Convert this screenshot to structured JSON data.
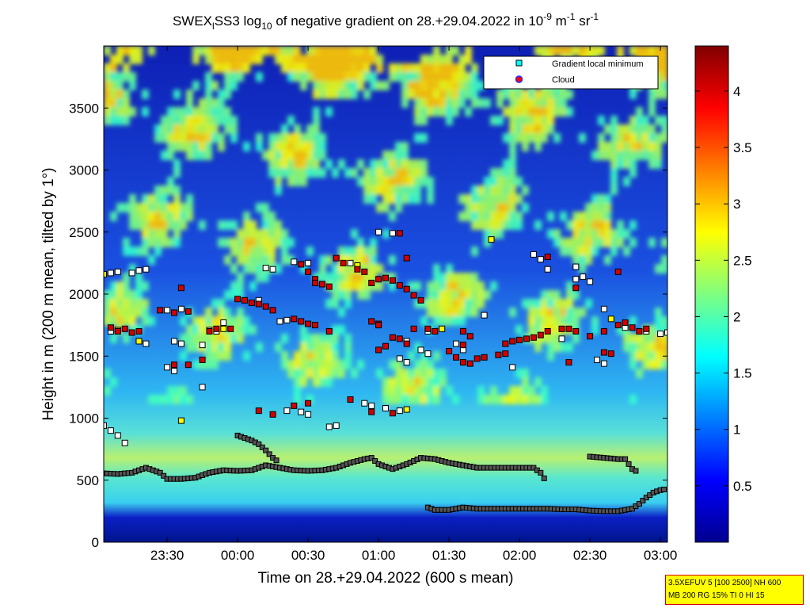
{
  "chart_data": {
    "type": "heatmap",
    "title": {
      "t1": "SWEX",
      "sub1": "l",
      "t2": "SS3 log",
      "sub2": "10",
      "t3": " of negative gradient on 28.+29.04.2022 in 10",
      "sup1": "-9",
      "t4": " m",
      "sup2": "-1",
      "t5": " sr",
      "sup3": "-1"
    },
    "xlabel": "Time on 28.+29.04.2022 (600 s mean)",
    "ylabel": "Height in m (200 m mean, tilted by 1°)",
    "x_ticks": [
      "23:30",
      "00:00",
      "00:30",
      "01:00",
      "01:30",
      "02:00",
      "02:30",
      "03:00"
    ],
    "x_tick_hours": [
      23.5,
      24.0,
      24.5,
      25.0,
      25.5,
      26.0,
      26.5,
      27.0
    ],
    "xlim_hours": [
      23.05,
      27.05
    ],
    "y_ticks": [
      "0",
      "500",
      "1000",
      "1500",
      "2000",
      "2500",
      "3000",
      "3500"
    ],
    "y_tick_values": [
      0,
      500,
      1000,
      1500,
      2000,
      2500,
      3000,
      3500
    ],
    "ylim": [
      0,
      4000
    ],
    "colorbar": {
      "ticks": [
        "0.5",
        "1",
        "1.5",
        "2",
        "2.5",
        "3",
        "3.5",
        "4"
      ],
      "tick_values": [
        0.5,
        1,
        1.5,
        2,
        2.5,
        3,
        3.5,
        4
      ],
      "range": [
        0,
        4.4
      ],
      "colormap": "jet"
    },
    "legend": {
      "placement": "top-right",
      "entries": [
        {
          "label": "Gradient local minimum",
          "marker": "square",
          "color": "#00ffff"
        },
        {
          "label": "Cloud",
          "marker": "circle",
          "color": "#ff0000"
        }
      ]
    },
    "series": [
      {
        "name": "Gradient local minimum",
        "style": "layer",
        "points": [
          [
            23.05,
            555
          ],
          [
            23.15,
            550
          ],
          [
            23.25,
            560
          ],
          [
            23.35,
            600
          ],
          [
            23.45,
            560
          ],
          [
            23.5,
            510
          ],
          [
            23.6,
            510
          ],
          [
            23.7,
            520
          ],
          [
            23.8,
            560
          ],
          [
            23.9,
            580
          ],
          [
            24.0,
            575
          ],
          [
            24.1,
            580
          ],
          [
            24.15,
            600
          ],
          [
            24.2,
            620
          ],
          [
            24.3,
            600
          ],
          [
            24.4,
            580
          ],
          [
            24.5,
            575
          ],
          [
            24.6,
            580
          ],
          [
            24.7,
            600
          ],
          [
            24.8,
            640
          ],
          [
            24.9,
            670
          ],
          [
            24.95,
            680
          ],
          [
            25.0,
            630
          ],
          [
            25.1,
            590
          ],
          [
            25.2,
            630
          ],
          [
            25.3,
            680
          ],
          [
            25.4,
            670
          ],
          [
            25.5,
            640
          ],
          [
            25.6,
            620
          ],
          [
            25.7,
            600
          ],
          [
            25.8,
            600
          ],
          [
            25.9,
            600
          ],
          [
            26.0,
            600
          ],
          [
            26.1,
            600
          ],
          [
            26.15,
            560
          ],
          [
            26.2,
            470
          ]
        ]
      },
      {
        "name": "Gradient local minimum",
        "style": "layer",
        "points": [
          [
            25.35,
            280
          ],
          [
            25.4,
            260
          ],
          [
            25.5,
            260
          ],
          [
            25.6,
            280
          ],
          [
            25.7,
            270
          ],
          [
            25.8,
            270
          ],
          [
            25.9,
            270
          ],
          [
            26.0,
            270
          ],
          [
            26.1,
            270
          ],
          [
            26.2,
            270
          ],
          [
            26.3,
            265
          ],
          [
            26.4,
            265
          ],
          [
            26.5,
            255
          ],
          [
            26.6,
            250
          ],
          [
            26.7,
            250
          ],
          [
            26.8,
            270
          ],
          [
            26.85,
            310
          ],
          [
            26.9,
            360
          ],
          [
            26.95,
            400
          ],
          [
            27.0,
            420
          ],
          [
            27.05,
            430
          ]
        ]
      },
      {
        "name": "Gradient local minimum",
        "style": "layer",
        "points": [
          [
            24.0,
            860
          ],
          [
            24.05,
            840
          ],
          [
            24.1,
            820
          ],
          [
            24.15,
            790
          ],
          [
            24.2,
            740
          ],
          [
            24.25,
            680
          ],
          [
            24.3,
            640
          ]
        ]
      },
      {
        "name": "Gradient local minimum",
        "style": "layer",
        "points": [
          [
            26.5,
            690
          ],
          [
            26.6,
            680
          ],
          [
            26.7,
            670
          ],
          [
            26.75,
            670
          ],
          [
            26.8,
            590
          ],
          [
            26.85,
            560
          ]
        ]
      },
      {
        "name": "Gradient local minimum",
        "style": "scatter",
        "points": [
          [
            23.05,
            2160
          ],
          [
            23.1,
            2170
          ],
          [
            23.15,
            2180
          ],
          [
            23.25,
            2170
          ],
          [
            23.3,
            2190
          ],
          [
            23.35,
            2200
          ],
          [
            23.5,
            1870
          ],
          [
            23.55,
            1850
          ],
          [
            23.6,
            1880
          ],
          [
            23.55,
            1620
          ],
          [
            23.6,
            1600
          ],
          [
            23.75,
            1590
          ],
          [
            23.8,
            1710
          ],
          [
            23.85,
            1700
          ],
          [
            23.9,
            1720
          ],
          [
            23.5,
            1410
          ],
          [
            23.55,
            1380
          ],
          [
            23.05,
            940
          ],
          [
            23.1,
            900
          ],
          [
            23.15,
            860
          ],
          [
            23.2,
            800
          ],
          [
            23.6,
            980
          ],
          [
            23.75,
            1250
          ],
          [
            24.2,
            2210
          ],
          [
            24.25,
            2200
          ],
          [
            24.4,
            2260
          ],
          [
            24.5,
            2250
          ],
          [
            24.8,
            2250
          ],
          [
            24.85,
            2230
          ],
          [
            25.0,
            2500
          ],
          [
            25.1,
            2490
          ],
          [
            24.9,
            1120
          ],
          [
            24.95,
            1100
          ],
          [
            25.05,
            1080
          ],
          [
            25.15,
            1060
          ],
          [
            25.2,
            1070
          ],
          [
            24.65,
            930
          ],
          [
            24.7,
            940
          ],
          [
            24.35,
            1060
          ],
          [
            24.45,
            1050
          ],
          [
            24.5,
            1030
          ],
          [
            23.1,
            1700
          ],
          [
            23.15,
            1710
          ],
          [
            25.2,
            1620
          ],
          [
            25.3,
            1550
          ],
          [
            25.35,
            1520
          ],
          [
            25.55,
            1600
          ],
          [
            25.6,
            1550
          ],
          [
            25.75,
            1830
          ],
          [
            25.8,
            2440
          ],
          [
            26.1,
            2320
          ],
          [
            26.15,
            2280
          ],
          [
            26.2,
            2200
          ],
          [
            26.4,
            2120
          ],
          [
            26.5,
            2100
          ],
          [
            26.6,
            1880
          ],
          [
            26.65,
            1800
          ],
          [
            26.9,
            1700
          ],
          [
            27.0,
            1680
          ],
          [
            27.05,
            1690
          ],
          [
            26.55,
            1470
          ],
          [
            26.6,
            1440
          ],
          [
            25.35,
            1700
          ],
          [
            25.45,
            1720
          ],
          [
            24.3,
            1780
          ],
          [
            24.35,
            1790
          ],
          [
            24.15,
            1950
          ],
          [
            23.9,
            1770
          ],
          [
            26.3,
            1640
          ],
          [
            26.75,
            1730
          ],
          [
            23.3,
            1620
          ],
          [
            23.35,
            1600
          ],
          [
            25.95,
            1410
          ],
          [
            26.4,
            2220
          ],
          [
            26.45,
            2140
          ],
          [
            25.15,
            1480
          ],
          [
            25.2,
            1450
          ]
        ]
      },
      {
        "name": "Cloud",
        "style": "scatter",
        "points": [
          [
            23.1,
            1730
          ],
          [
            23.15,
            1700
          ],
          [
            23.2,
            1720
          ],
          [
            23.25,
            1690
          ],
          [
            23.3,
            1700
          ],
          [
            23.45,
            1870
          ],
          [
            23.55,
            1850
          ],
          [
            23.65,
            1860
          ],
          [
            23.55,
            1430
          ],
          [
            23.65,
            1430
          ],
          [
            23.75,
            1470
          ],
          [
            23.6,
            2050
          ],
          [
            23.8,
            1700
          ],
          [
            24.0,
            1960
          ],
          [
            24.05,
            1950
          ],
          [
            24.1,
            1930
          ],
          [
            24.15,
            1920
          ],
          [
            24.2,
            1900
          ],
          [
            24.25,
            1870
          ],
          [
            24.4,
            1800
          ],
          [
            24.45,
            1780
          ],
          [
            24.5,
            1760
          ],
          [
            24.55,
            1750
          ],
          [
            24.45,
            2240
          ],
          [
            24.5,
            2180
          ],
          [
            24.55,
            2120
          ],
          [
            24.6,
            2080
          ],
          [
            24.65,
            2060
          ],
          [
            24.7,
            2290
          ],
          [
            24.75,
            2250
          ],
          [
            24.85,
            2200
          ],
          [
            24.9,
            2180
          ],
          [
            24.95,
            2090
          ],
          [
            25.0,
            2120
          ],
          [
            25.05,
            2130
          ],
          [
            25.1,
            2110
          ],
          [
            25.15,
            2070
          ],
          [
            25.2,
            2040
          ],
          [
            25.25,
            1990
          ],
          [
            25.3,
            1950
          ],
          [
            25.0,
            1550
          ],
          [
            25.05,
            1580
          ],
          [
            25.1,
            1650
          ],
          [
            25.15,
            1640
          ],
          [
            25.2,
            1600
          ],
          [
            24.95,
            1780
          ],
          [
            25.0,
            1760
          ],
          [
            25.4,
            1700
          ],
          [
            25.5,
            1540
          ],
          [
            25.55,
            1490
          ],
          [
            25.6,
            1450
          ],
          [
            25.65,
            1440
          ],
          [
            25.7,
            1480
          ],
          [
            25.75,
            1490
          ],
          [
            25.85,
            1510
          ],
          [
            25.9,
            1520
          ],
          [
            25.95,
            1620
          ],
          [
            26.0,
            1630
          ],
          [
            26.05,
            1640
          ],
          [
            26.1,
            1650
          ],
          [
            26.15,
            1670
          ],
          [
            26.2,
            1700
          ],
          [
            26.3,
            1720
          ],
          [
            26.35,
            1720
          ],
          [
            26.4,
            1700
          ],
          [
            26.6,
            1530
          ],
          [
            26.65,
            1520
          ],
          [
            26.7,
            1750
          ],
          [
            26.75,
            1770
          ],
          [
            26.8,
            1730
          ],
          [
            26.85,
            1700
          ],
          [
            26.9,
            1720
          ],
          [
            26.4,
            2050
          ],
          [
            26.5,
            1660
          ],
          [
            26.6,
            1700
          ],
          [
            26.7,
            2180
          ],
          [
            24.15,
            1060
          ],
          [
            24.25,
            1030
          ],
          [
            24.4,
            1100
          ],
          [
            24.5,
            1120
          ],
          [
            24.95,
            1050
          ],
          [
            25.1,
            1040
          ],
          [
            25.15,
            2490
          ],
          [
            25.2,
            2290
          ],
          [
            25.35,
            1720
          ],
          [
            25.6,
            1700
          ],
          [
            25.65,
            1660
          ],
          [
            25.9,
            1600
          ],
          [
            26.2,
            2300
          ],
          [
            26.35,
            1450
          ],
          [
            24.8,
            1150
          ],
          [
            23.95,
            1720
          ],
          [
            23.85,
            1720
          ],
          [
            24.55,
            2090
          ],
          [
            24.65,
            1700
          ],
          [
            25.0,
            1750
          ],
          [
            25.25,
            1720
          ],
          [
            25.6,
            1590
          ]
        ]
      }
    ]
  },
  "info_box": {
    "line1": "3.5XEFUV 5 [100 2500] NH 600",
    "line2": "MB 200 RG 15% TI 0 HI 15"
  }
}
